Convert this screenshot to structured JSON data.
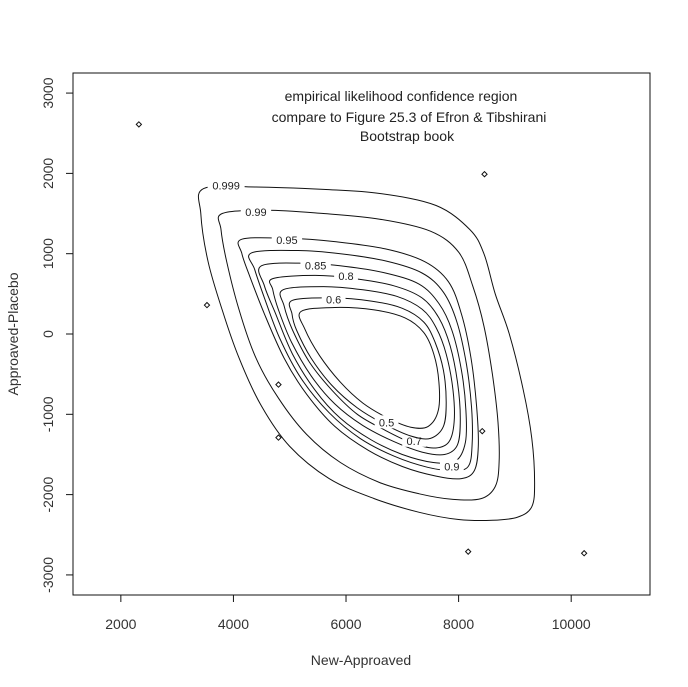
{
  "chart_data": {
    "type": "contour",
    "xlabel": "New-Approaved",
    "ylabel": "Approaved-Placebo",
    "xlim": [
      1150,
      11400
    ],
    "ylim": [
      -3250,
      3250
    ],
    "x_ticks": [
      2000,
      4000,
      6000,
      8000,
      10000
    ],
    "y_ticks": [
      -3000,
      -2000,
      -1000,
      0,
      1000,
      2000,
      3000
    ],
    "annotation": [
      "empirical likelihood confidence region",
      "compare to Figure 25.3 of Efron & Tibshirani",
      "Bootstrap book"
    ],
    "points": [
      {
        "x": 2320,
        "y": 2610
      },
      {
        "x": 3530,
        "y": 360
      },
      {
        "x": 4800,
        "y": -630
      },
      {
        "x": 4800,
        "y": -1290
      },
      {
        "x": 8170,
        "y": -2710
      },
      {
        "x": 8420,
        "y": -1210
      },
      {
        "x": 8460,
        "y": 1990
      },
      {
        "x": 10230,
        "y": -2730
      }
    ],
    "contours": [
      {
        "level": "0.999",
        "label_pos": [
          3870,
          1850
        ],
        "points": [
          [
            3470,
            1810
          ],
          [
            4400,
            1830
          ],
          [
            5600,
            1800
          ],
          [
            6600,
            1750
          ],
          [
            7600,
            1600
          ],
          [
            8200,
            1300
          ],
          [
            8450,
            1000
          ],
          [
            8650,
            500
          ],
          [
            8900,
            0
          ],
          [
            9150,
            -700
          ],
          [
            9300,
            -1300
          ],
          [
            9350,
            -1850
          ],
          [
            9300,
            -2150
          ],
          [
            9050,
            -2280
          ],
          [
            8600,
            -2320
          ],
          [
            8000,
            -2310
          ],
          [
            7300,
            -2220
          ],
          [
            6500,
            -2050
          ],
          [
            5700,
            -1800
          ],
          [
            5000,
            -1400
          ],
          [
            4500,
            -900
          ],
          [
            4100,
            -300
          ],
          [
            3800,
            300
          ],
          [
            3550,
            900
          ],
          [
            3420,
            1500
          ],
          [
            3470,
            1810
          ]
        ]
      },
      {
        "level": "0.99",
        "label_pos": [
          4400,
          1520
        ],
        "points": [
          [
            3800,
            1500
          ],
          [
            4600,
            1540
          ],
          [
            5600,
            1500
          ],
          [
            6600,
            1430
          ],
          [
            7500,
            1280
          ],
          [
            8000,
            1020
          ],
          [
            8250,
            600
          ],
          [
            8450,
            100
          ],
          [
            8600,
            -500
          ],
          [
            8700,
            -1100
          ],
          [
            8720,
            -1600
          ],
          [
            8650,
            -1900
          ],
          [
            8400,
            -2050
          ],
          [
            7900,
            -2060
          ],
          [
            7300,
            -1990
          ],
          [
            6600,
            -1850
          ],
          [
            5900,
            -1600
          ],
          [
            5300,
            -1250
          ],
          [
            4800,
            -800
          ],
          [
            4400,
            -300
          ],
          [
            4100,
            300
          ],
          [
            3880,
            900
          ],
          [
            3780,
            1300
          ],
          [
            3800,
            1500
          ]
        ]
      },
      {
        "level": "0.95",
        "label_pos": [
          4950,
          1170
        ],
        "points": [
          [
            4150,
            1180
          ],
          [
            5000,
            1190
          ],
          [
            5800,
            1150
          ],
          [
            6700,
            1060
          ],
          [
            7400,
            900
          ],
          [
            7820,
            650
          ],
          [
            8050,
            250
          ],
          [
            8220,
            -300
          ],
          [
            8320,
            -900
          ],
          [
            8350,
            -1400
          ],
          [
            8280,
            -1700
          ],
          [
            8050,
            -1800
          ],
          [
            7600,
            -1770
          ],
          [
            7000,
            -1650
          ],
          [
            6400,
            -1450
          ],
          [
            5800,
            -1150
          ],
          [
            5300,
            -750
          ],
          [
            4900,
            -300
          ],
          [
            4550,
            250
          ],
          [
            4300,
            700
          ],
          [
            4150,
            1000
          ],
          [
            4150,
            1180
          ]
        ]
      },
      {
        "level": "0.85",
        "label_pos": [
          5460,
          850
        ],
        "points": [
          [
            4500,
            850
          ],
          [
            5300,
            880
          ],
          [
            6000,
            840
          ],
          [
            6700,
            760
          ],
          [
            7300,
            620
          ],
          [
            7650,
            380
          ],
          [
            7880,
            50
          ],
          [
            8050,
            -450
          ],
          [
            8130,
            -950
          ],
          [
            8120,
            -1350
          ],
          [
            7950,
            -1580
          ],
          [
            7550,
            -1600
          ],
          [
            7000,
            -1500
          ],
          [
            6450,
            -1320
          ],
          [
            5900,
            -1050
          ],
          [
            5450,
            -700
          ],
          [
            5050,
            -250
          ],
          [
            4750,
            250
          ],
          [
            4550,
            600
          ],
          [
            4500,
            850
          ]
        ]
      },
      {
        "level": "0.8",
        "label_pos": [
          6000,
          720
        ],
        "points": [
          [
            4700,
            690
          ],
          [
            5450,
            730
          ],
          [
            6150,
            690
          ],
          [
            6850,
            600
          ],
          [
            7350,
            450
          ],
          [
            7650,
            200
          ],
          [
            7850,
            -150
          ],
          [
            7980,
            -600
          ],
          [
            8030,
            -1050
          ],
          [
            7980,
            -1380
          ],
          [
            7750,
            -1500
          ],
          [
            7350,
            -1470
          ],
          [
            6850,
            -1340
          ],
          [
            6300,
            -1140
          ],
          [
            5800,
            -870
          ],
          [
            5380,
            -520
          ],
          [
            5030,
            -100
          ],
          [
            4800,
            300
          ],
          [
            4700,
            550
          ],
          [
            4700,
            690
          ]
        ]
      },
      {
        "level": "0.7",
        "label_pos": [
          7210,
          -1330
        ],
        "points": [
          [
            4880,
            550
          ],
          [
            5600,
            590
          ],
          [
            6300,
            550
          ],
          [
            6900,
            470
          ],
          [
            7350,
            310
          ],
          [
            7600,
            80
          ],
          [
            7780,
            -250
          ],
          [
            7900,
            -700
          ],
          [
            7920,
            -1100
          ],
          [
            7820,
            -1350
          ],
          [
            7550,
            -1420
          ],
          [
            7150,
            -1350
          ],
          [
            6700,
            -1200
          ],
          [
            6200,
            -1000
          ],
          [
            5750,
            -700
          ],
          [
            5350,
            -350
          ],
          [
            5050,
            50
          ],
          [
            4900,
            350
          ],
          [
            4880,
            550
          ]
        ]
      },
      {
        "level": "0.6",
        "label_pos": [
          5780,
          430
        ],
        "points": [
          [
            5050,
            420
          ],
          [
            5750,
            450
          ],
          [
            6450,
            410
          ],
          [
            7000,
            320
          ],
          [
            7380,
            150
          ],
          [
            7580,
            -100
          ],
          [
            7730,
            -450
          ],
          [
            7780,
            -850
          ],
          [
            7730,
            -1150
          ],
          [
            7500,
            -1300
          ],
          [
            7150,
            -1270
          ],
          [
            6700,
            -1130
          ],
          [
            6200,
            -920
          ],
          [
            5750,
            -640
          ],
          [
            5380,
            -300
          ],
          [
            5120,
            50
          ],
          [
            5040,
            250
          ],
          [
            5050,
            420
          ]
        ]
      },
      {
        "level": "0.5",
        "label_pos": [
          6720,
          -1100
        ],
        "points": [
          [
            5200,
            280
          ],
          [
            5800,
            330
          ],
          [
            6500,
            300
          ],
          [
            7050,
            200
          ],
          [
            7380,
            20
          ],
          [
            7560,
            -250
          ],
          [
            7650,
            -600
          ],
          [
            7640,
            -950
          ],
          [
            7460,
            -1150
          ],
          [
            7150,
            -1160
          ],
          [
            6750,
            -1050
          ],
          [
            6300,
            -860
          ],
          [
            5900,
            -600
          ],
          [
            5530,
            -270
          ],
          [
            5270,
            60
          ],
          [
            5200,
            280
          ]
        ]
      },
      {
        "level": "0.9",
        "label_pos": [
          7880,
          -1650
        ],
        "points": [
          [
            4320,
            1010
          ],
          [
            5150,
            1040
          ],
          [
            5900,
            1000
          ],
          [
            6700,
            910
          ],
          [
            7350,
            760
          ],
          [
            7730,
            520
          ],
          [
            7970,
            150
          ],
          [
            8140,
            -380
          ],
          [
            8230,
            -920
          ],
          [
            8240,
            -1380
          ],
          [
            8170,
            -1650
          ],
          [
            7900,
            -1700
          ],
          [
            7450,
            -1660
          ],
          [
            6850,
            -1520
          ],
          [
            6250,
            -1300
          ],
          [
            5700,
            -980
          ],
          [
            5200,
            -550
          ],
          [
            4820,
            -50
          ],
          [
            4550,
            450
          ],
          [
            4380,
            800
          ],
          [
            4320,
            1010
          ]
        ]
      }
    ]
  }
}
